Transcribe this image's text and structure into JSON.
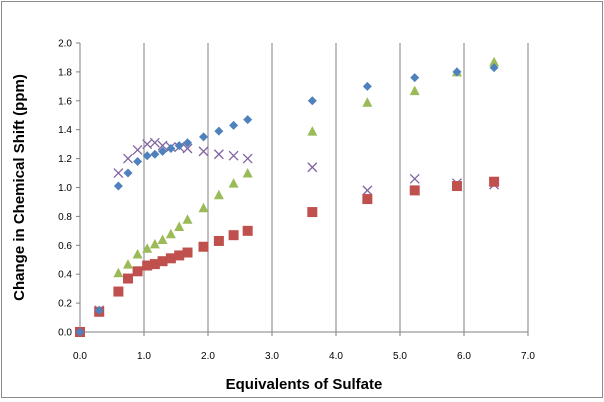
{
  "chart_data": {
    "type": "scatter",
    "title": "",
    "xlabel": "Equivalents of Sulfate",
    "ylabel": "Change in Chemical Shift (ppm)",
    "xlim": [
      0.0,
      7.0
    ],
    "ylim": [
      0.0,
      2.0
    ],
    "x_ticks": [
      "0.0",
      "1.0",
      "2.0",
      "3.0",
      "4.0",
      "5.0",
      "6.0",
      "7.0"
    ],
    "y_ticks": [
      "0.0",
      "0.2",
      "0.4",
      "0.6",
      "0.8",
      "1.0",
      "1.2",
      "1.4",
      "1.6",
      "1.8",
      "2.0"
    ],
    "grid": "vertical",
    "legend": "none",
    "series": [
      {
        "marker": "diamond",
        "color": "#4f81bd",
        "x": [
          0.0,
          0.3,
          0.6,
          0.75,
          0.9,
          1.05,
          1.17,
          1.29,
          1.42,
          1.55,
          1.68,
          1.93,
          2.17,
          2.4,
          2.62,
          3.63,
          4.49,
          5.23,
          5.89,
          6.47
        ],
        "y": [
          0.0,
          0.15,
          1.01,
          1.1,
          1.18,
          1.22,
          1.23,
          1.25,
          1.27,
          1.29,
          1.31,
          1.35,
          1.39,
          1.43,
          1.47,
          1.6,
          1.7,
          1.76,
          1.8,
          1.83
        ]
      },
      {
        "marker": "square",
        "color": "#c0504d",
        "x": [
          0.0,
          0.3,
          0.6,
          0.75,
          0.9,
          1.05,
          1.17,
          1.29,
          1.42,
          1.55,
          1.68,
          1.93,
          2.17,
          2.4,
          2.62,
          3.63,
          4.49,
          5.23,
          5.89,
          6.47
        ],
        "y": [
          0.0,
          0.14,
          0.28,
          0.37,
          0.42,
          0.46,
          0.47,
          0.49,
          0.51,
          0.53,
          0.55,
          0.59,
          0.63,
          0.67,
          0.7,
          0.83,
          0.92,
          0.98,
          1.01,
          1.04
        ]
      },
      {
        "marker": "triangle",
        "color": "#9bbb59",
        "x": [
          0.0,
          0.3,
          0.6,
          0.75,
          0.9,
          1.05,
          1.17,
          1.29,
          1.42,
          1.55,
          1.68,
          1.93,
          2.17,
          2.4,
          2.62,
          3.63,
          4.49,
          5.23,
          5.89,
          6.47
        ],
        "y": [
          0.0,
          0.15,
          0.41,
          0.47,
          0.54,
          0.58,
          0.61,
          0.64,
          0.68,
          0.73,
          0.78,
          0.86,
          0.95,
          1.03,
          1.1,
          1.39,
          1.59,
          1.67,
          1.8,
          1.87
        ]
      },
      {
        "marker": "x",
        "color": "#8064a2",
        "x": [
          0.0,
          0.3,
          0.6,
          0.75,
          0.9,
          1.05,
          1.17,
          1.29,
          1.42,
          1.55,
          1.68,
          1.93,
          2.17,
          2.4,
          2.62,
          3.63,
          4.49,
          5.23,
          5.89,
          6.47
        ],
        "y": [
          0.0,
          0.15,
          1.1,
          1.2,
          1.26,
          1.3,
          1.31,
          1.29,
          1.28,
          1.28,
          1.27,
          1.25,
          1.23,
          1.22,
          1.2,
          1.14,
          0.98,
          1.06,
          1.03,
          1.02
        ]
      }
    ]
  }
}
